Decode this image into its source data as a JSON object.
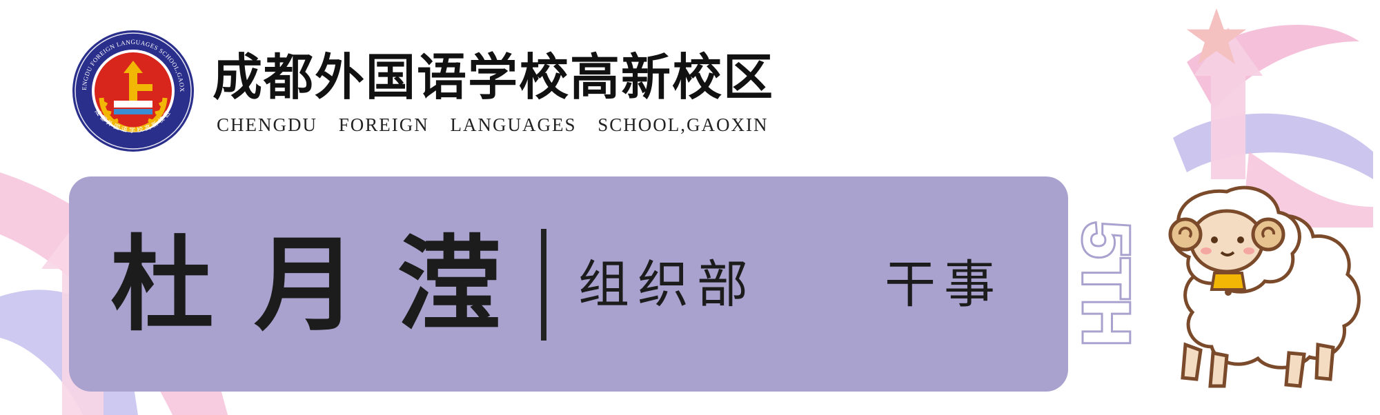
{
  "school": {
    "name_cn": "成都外国语学校高新校区",
    "name_en": "CHENGDU FOREIGN LANGUAGES SCHOOL,GAOXIN",
    "logo_ring_text": "CHENGDU FOREIGN LANGUAGES SCHOOL,GAOXIN",
    "logo_ring_text_cn": "成都外国语学校高新校区"
  },
  "badge": {
    "person_name": "杜月滢",
    "department": "组织部",
    "role": "干事"
  },
  "decor": {
    "anniversary_text": "5TH"
  },
  "colors": {
    "card_bg": "#a9a1ce",
    "ribbon_pink": "#f3b6d3",
    "ribbon_lavender": "#c6c0ec",
    "logo_navy": "#2a2f8c",
    "logo_red": "#d9261c",
    "logo_gold": "#f2b705"
  }
}
